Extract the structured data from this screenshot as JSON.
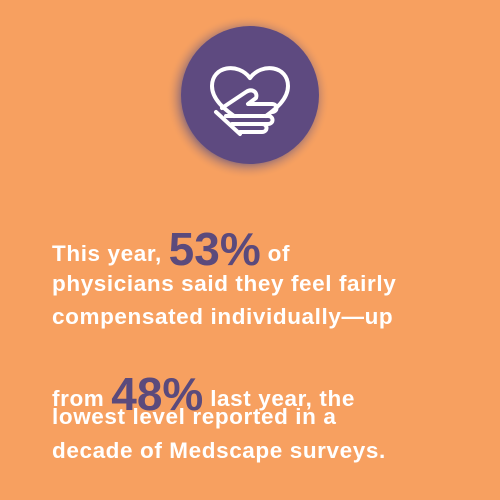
{
  "text": {
    "line_1": {
      "before": "This year,",
      "stat": "53%",
      "after": "of"
    },
    "line_2": "physicians said they feel fairly",
    "line_3": "compensated individually—up",
    "line_4": {
      "before": "from",
      "stat": "48%",
      "after": "last year, the"
    },
    "line_5": "lowest level reported in a",
    "line_6": "decade of Medscape surveys."
  }
}
